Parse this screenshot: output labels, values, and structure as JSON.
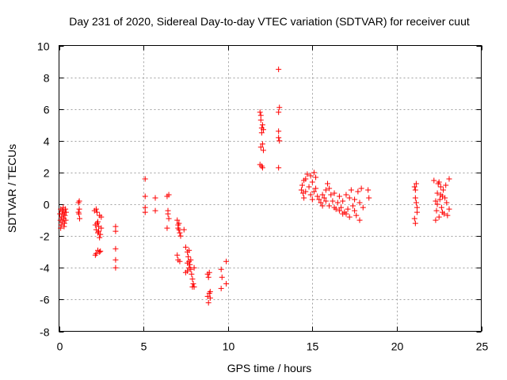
{
  "chart_data": {
    "type": "scatter",
    "title": "Day 231 of 2020, Sidereal Day-to-day VTEC variation (SDTVAR) for receiver cuut",
    "xlabel": "GPS time / hours",
    "ylabel": "SDTVAR / TECUs",
    "xlim": [
      0,
      25
    ],
    "ylim": [
      -8,
      10
    ],
    "x_ticks": [
      0,
      5,
      10,
      15,
      20,
      25
    ],
    "y_ticks": [
      -8,
      -6,
      -4,
      -2,
      0,
      2,
      4,
      6,
      8,
      10
    ],
    "x_tick_labels": [
      "0",
      "5",
      "10",
      "15",
      "20",
      "25"
    ],
    "y_tick_labels": [
      "-8",
      "-6",
      "-4",
      "-2",
      "0",
      "2",
      "4",
      "6",
      "8",
      "10"
    ],
    "grid": true,
    "marker": "+",
    "color": "#ff0000",
    "series": [
      {
        "name": "SDTVAR",
        "points": [
          [
            0.05,
            -0.6
          ],
          [
            0.08,
            -1.0
          ],
          [
            0.1,
            -0.3
          ],
          [
            0.12,
            -1.3
          ],
          [
            0.15,
            -0.8
          ],
          [
            0.18,
            -0.4
          ],
          [
            0.2,
            -1.1
          ],
          [
            0.22,
            -0.6
          ],
          [
            0.25,
            -0.2
          ],
          [
            0.28,
            -0.9
          ],
          [
            0.3,
            -0.5
          ],
          [
            0.32,
            -1.2
          ],
          [
            0.35,
            -0.7
          ],
          [
            0.38,
            -0.3
          ],
          [
            0.4,
            -1.0
          ],
          [
            0.42,
            -0.5
          ],
          [
            0.1,
            -1.5
          ],
          [
            0.3,
            -1.4
          ],
          [
            1.15,
            0.1
          ],
          [
            1.2,
            -0.3
          ],
          [
            1.18,
            -0.6
          ],
          [
            1.22,
            -0.9
          ],
          [
            1.15,
            -0.5
          ],
          [
            1.2,
            0.2
          ],
          [
            2.1,
            -0.4
          ],
          [
            2.15,
            -1.3
          ],
          [
            2.2,
            -1.6
          ],
          [
            2.25,
            -0.5
          ],
          [
            2.3,
            -1.8
          ],
          [
            2.35,
            -1.4
          ],
          [
            2.4,
            -0.7
          ],
          [
            2.45,
            -1.9
          ],
          [
            2.5,
            -1.5
          ],
          [
            2.2,
            -0.3
          ],
          [
            2.3,
            -1.1
          ],
          [
            2.4,
            -2.1
          ],
          [
            2.5,
            -0.8
          ],
          [
            2.2,
            -3.1
          ],
          [
            2.3,
            -2.9
          ],
          [
            2.4,
            -3.0
          ],
          [
            2.15,
            -3.2
          ],
          [
            2.45,
            -2.95
          ],
          [
            2.35,
            -1.7
          ],
          [
            2.25,
            -1.2
          ],
          [
            3.35,
            -1.4
          ],
          [
            3.35,
            -1.7
          ],
          [
            3.35,
            -2.8
          ],
          [
            3.35,
            -3.5
          ],
          [
            3.35,
            -4.0
          ],
          [
            5.1,
            1.6
          ],
          [
            5.1,
            0.5
          ],
          [
            5.1,
            -0.2
          ],
          [
            5.1,
            -0.5
          ],
          [
            5.7,
            0.4
          ],
          [
            5.7,
            -0.4
          ],
          [
            6.4,
            0.5
          ],
          [
            6.45,
            -0.6
          ],
          [
            6.5,
            -0.9
          ],
          [
            6.4,
            -1.5
          ],
          [
            6.45,
            -0.4
          ],
          [
            6.5,
            0.6
          ],
          [
            7.0,
            -1.0
          ],
          [
            7.05,
            -1.3
          ],
          [
            7.1,
            -1.6
          ],
          [
            7.15,
            -1.8
          ],
          [
            7.2,
            -2.0
          ],
          [
            7.05,
            -1.5
          ],
          [
            7.1,
            -1.2
          ],
          [
            7.0,
            -3.2
          ],
          [
            7.05,
            -3.5
          ],
          [
            7.15,
            -3.6
          ],
          [
            7.4,
            -1.6
          ],
          [
            7.5,
            -2.7
          ],
          [
            7.6,
            -3.0
          ],
          [
            7.65,
            -3.3
          ],
          [
            7.7,
            -3.6
          ],
          [
            7.75,
            -3.8
          ],
          [
            7.8,
            -4.1
          ],
          [
            7.85,
            -4.4
          ],
          [
            7.9,
            -4.7
          ],
          [
            7.95,
            -5.0
          ],
          [
            8.0,
            -5.2
          ],
          [
            7.6,
            -4.2
          ],
          [
            7.7,
            -4.0
          ],
          [
            7.8,
            -3.5
          ],
          [
            7.5,
            -4.3
          ],
          [
            7.9,
            -5.2
          ],
          [
            8.0,
            -4.0
          ],
          [
            7.7,
            -2.9
          ],
          [
            7.6,
            -3.7
          ],
          [
            8.8,
            -4.4
          ],
          [
            8.85,
            -4.6
          ],
          [
            8.9,
            -5.6
          ],
          [
            8.95,
            -5.9
          ],
          [
            8.85,
            -6.2
          ],
          [
            8.9,
            -4.3
          ],
          [
            8.95,
            -5.5
          ],
          [
            8.8,
            -5.8
          ],
          [
            9.6,
            -4.1
          ],
          [
            9.65,
            -4.6
          ],
          [
            9.6,
            -5.3
          ],
          [
            9.9,
            -3.6
          ],
          [
            9.9,
            -5.0
          ],
          [
            11.9,
            5.8
          ],
          [
            11.95,
            5.3
          ],
          [
            12.0,
            4.8
          ],
          [
            12.05,
            3.8
          ],
          [
            12.1,
            3.4
          ],
          [
            12.0,
            2.4
          ],
          [
            12.05,
            2.3
          ],
          [
            11.95,
            5.6
          ],
          [
            12.1,
            4.7
          ],
          [
            11.9,
            2.5
          ],
          [
            12.0,
            4.5
          ],
          [
            12.05,
            5.0
          ],
          [
            11.95,
            3.6
          ],
          [
            13.0,
            8.5
          ],
          [
            13.05,
            6.1
          ],
          [
            13.0,
            5.8
          ],
          [
            13.0,
            4.6
          ],
          [
            13.0,
            4.2
          ],
          [
            13.05,
            4.0
          ],
          [
            13.0,
            2.3
          ],
          [
            14.35,
            0.9
          ],
          [
            14.4,
            1.2
          ],
          [
            14.45,
            0.7
          ],
          [
            14.5,
            1.5
          ],
          [
            14.6,
            0.8
          ],
          [
            14.7,
            1.9
          ],
          [
            14.8,
            1.1
          ],
          [
            14.9,
            0.6
          ],
          [
            15.0,
            1.4
          ],
          [
            15.1,
            0.8
          ],
          [
            15.2,
            1.0
          ],
          [
            15.3,
            0.5
          ],
          [
            15.4,
            0.3
          ],
          [
            15.5,
            0.1
          ],
          [
            15.6,
            -0.1
          ],
          [
            15.7,
            0.4
          ],
          [
            15.8,
            0.9
          ],
          [
            15.9,
            1.3
          ],
          [
            16.0,
            1.0
          ],
          [
            16.1,
            0.6
          ],
          [
            16.2,
            0.2
          ],
          [
            16.3,
            -0.2
          ],
          [
            16.4,
            -0.3
          ],
          [
            16.5,
            0.1
          ],
          [
            16.6,
            -0.4
          ],
          [
            16.7,
            -0.2
          ],
          [
            16.8,
            0.2
          ],
          [
            16.9,
            -0.5
          ],
          [
            17.0,
            -0.6
          ],
          [
            17.1,
            -0.3
          ],
          [
            17.2,
            0.4
          ],
          [
            17.3,
            0.9
          ],
          [
            17.4,
            -0.1
          ],
          [
            17.5,
            0.3
          ],
          [
            17.6,
            -0.7
          ],
          [
            17.7,
            0.8
          ],
          [
            17.8,
            0.1
          ],
          [
            17.9,
            1.0
          ],
          [
            18.0,
            -0.2
          ],
          [
            14.5,
            0.4
          ],
          [
            14.9,
            1.8
          ],
          [
            15.0,
            0.3
          ],
          [
            15.2,
            1.7
          ],
          [
            15.6,
            0.6
          ],
          [
            16.0,
            -0.1
          ],
          [
            16.8,
            -0.6
          ],
          [
            17.2,
            -0.8
          ],
          [
            17.5,
            -0.4
          ],
          [
            17.8,
            -1.0
          ],
          [
            18.3,
            0.9
          ],
          [
            18.35,
            0.4
          ],
          [
            15.1,
            2.0
          ],
          [
            14.6,
            1.6
          ],
          [
            16.6,
            0.5
          ],
          [
            17.0,
            0.6
          ],
          [
            16.3,
            0.7
          ],
          [
            15.8,
            0.2
          ],
          [
            21.05,
            1.1
          ],
          [
            21.1,
            0.4
          ],
          [
            21.15,
            1.3
          ],
          [
            21.2,
            -0.2
          ],
          [
            21.05,
            -0.9
          ],
          [
            21.1,
            -1.2
          ],
          [
            21.15,
            0.1
          ],
          [
            21.2,
            -0.5
          ],
          [
            21.1,
            0.9
          ],
          [
            22.2,
            1.5
          ],
          [
            22.3,
            0.2
          ],
          [
            22.35,
            -0.4
          ],
          [
            22.4,
            0.7
          ],
          [
            22.45,
            1.3
          ],
          [
            22.5,
            -0.8
          ],
          [
            22.55,
            0.3
          ],
          [
            22.6,
            1.1
          ],
          [
            22.65,
            -0.2
          ],
          [
            22.7,
            0.5
          ],
          [
            22.75,
            0.9
          ],
          [
            22.8,
            -0.6
          ],
          [
            22.85,
            0.4
          ],
          [
            22.9,
            1.2
          ],
          [
            22.95,
            0.1
          ],
          [
            23.0,
            -0.7
          ],
          [
            23.1,
            1.6
          ],
          [
            23.1,
            -0.3
          ],
          [
            22.3,
            -1.0
          ],
          [
            22.5,
            1.4
          ],
          [
            22.7,
            -0.5
          ],
          [
            22.4,
            0.0
          ],
          [
            22.6,
            0.6
          ]
        ]
      }
    ]
  }
}
